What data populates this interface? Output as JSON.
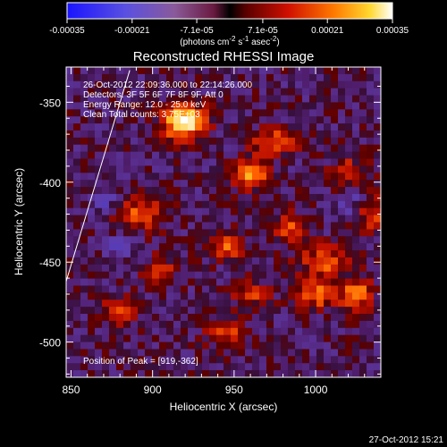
{
  "colorbar": {
    "ticks": [
      "-0.00035",
      "-0.00021",
      "-7.1e-05",
      "7.1e-05",
      "0.00021",
      "0.00035"
    ],
    "tick_values": [
      -0.00035,
      -0.00021,
      -7.1e-05,
      7.1e-05,
      0.00021,
      0.00035
    ],
    "range": [
      -0.00035,
      0.00035
    ],
    "units": "(photons cm",
    "units_exp1": "-2",
    "units_mid": " s",
    "units_exp2": "-1",
    "units_mid2": " asec",
    "units_exp3": "-2",
    "units_end": ")"
  },
  "chart_data": {
    "type": "heatmap",
    "title": "Reconstructed RHESSI Image",
    "xlabel": "Heliocentric X (arcsec)",
    "ylabel": "Heliocentric Y (arcsec)",
    "xlim": [
      847,
      1040
    ],
    "ylim": [
      -522,
      -328
    ],
    "x_ticks": [
      850,
      900,
      950,
      1000
    ],
    "x_tick_labels": [
      "850",
      "900",
      "950",
      "1000"
    ],
    "y_ticks": [
      -350,
      -400,
      -450,
      -500
    ],
    "y_tick_labels": [
      "-350",
      "-400",
      "-450",
      "-500"
    ],
    "annotations": [
      "26-Oct-2012 22:09:36.000 to 22:14:26.000",
      "Detectors: 3F 5F 6F 7F 8F 9F, Att 0",
      "Energy Range: 12.0 - 25.0 keV",
      "Clean     Total counts: 3.75E+03"
    ],
    "peak_label": "Position of Peak = [919,-362]",
    "peak": [
      919,
      -362
    ],
    "limb_line": [
      [
        847,
        -462
      ],
      [
        886,
        -330
      ]
    ],
    "sources": [
      {
        "x": 919,
        "y": -362,
        "sx": 9,
        "sy": 8,
        "amp": 1.0
      },
      {
        "x": 893,
        "y": -420,
        "sx": 10,
        "sy": 7,
        "amp": 0.55
      },
      {
        "x": 960,
        "y": -395,
        "sx": 8,
        "sy": 7,
        "amp": 0.7
      },
      {
        "x": 975,
        "y": -375,
        "sx": 9,
        "sy": 6,
        "amp": 0.55
      },
      {
        "x": 945,
        "y": -440,
        "sx": 8,
        "sy": 6,
        "amp": 0.5
      },
      {
        "x": 985,
        "y": -430,
        "sx": 7,
        "sy": 7,
        "amp": 0.5
      },
      {
        "x": 1005,
        "y": -450,
        "sx": 10,
        "sy": 7,
        "amp": 0.55
      },
      {
        "x": 1000,
        "y": -470,
        "sx": 9,
        "sy": 6,
        "amp": 0.6
      },
      {
        "x": 1025,
        "y": -470,
        "sx": 7,
        "sy": 7,
        "amp": 0.65
      },
      {
        "x": 1020,
        "y": -395,
        "sx": 8,
        "sy": 7,
        "amp": 0.45
      },
      {
        "x": 945,
        "y": -495,
        "sx": 8,
        "sy": 6,
        "amp": 0.45
      },
      {
        "x": 960,
        "y": -470,
        "sx": 8,
        "sy": 6,
        "amp": 0.4
      },
      {
        "x": 905,
        "y": -455,
        "sx": 7,
        "sy": 6,
        "amp": 0.4
      },
      {
        "x": 880,
        "y": -480,
        "sx": 8,
        "sy": 6,
        "amp": 0.4
      },
      {
        "x": 1035,
        "y": -420,
        "sx": 6,
        "sy": 8,
        "amp": 0.45
      },
      {
        "x": 870,
        "y": -410,
        "sx": 5,
        "sy": 5,
        "amp": -0.35
      },
      {
        "x": 1020,
        "y": -410,
        "sx": 6,
        "sy": 6,
        "amp": -0.3
      },
      {
        "x": 880,
        "y": -440,
        "sx": 6,
        "sy": 5,
        "amp": -0.25
      }
    ],
    "background_level": -0.05
  },
  "footer": {
    "timestamp": "27-Oct-2012 15:21"
  }
}
